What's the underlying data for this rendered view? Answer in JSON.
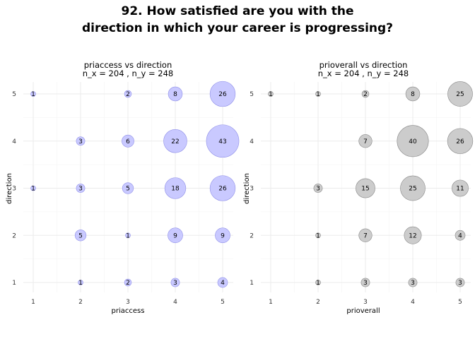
{
  "title_line1": "92. How satisfied are you with the",
  "title_line2": "direction in which your career is progressing?",
  "colors": {
    "left_fill": "#c9c9ff",
    "left_stroke": "#8f8fe8",
    "right_fill": "#cccccc",
    "right_stroke": "#888888",
    "grid": "#ebebeb"
  },
  "chart_data": [
    {
      "type": "scatter",
      "title": "priaccess vs direction",
      "subtitle": "n_x = 204 , n_y = 248",
      "xlabel": "priaccess",
      "ylabel": "direction",
      "xlim": [
        1,
        5
      ],
      "ylim": [
        1,
        5
      ],
      "x_ticks": [
        "1",
        "2",
        "3",
        "4",
        "5"
      ],
      "y_ticks": [
        "1",
        "2",
        "3",
        "4",
        "5"
      ],
      "points": [
        {
          "x": 1,
          "y": 5,
          "count": 1
        },
        {
          "x": 3,
          "y": 5,
          "count": 2
        },
        {
          "x": 4,
          "y": 5,
          "count": 8
        },
        {
          "x": 5,
          "y": 5,
          "count": 26
        },
        {
          "x": 2,
          "y": 4,
          "count": 3
        },
        {
          "x": 3,
          "y": 4,
          "count": 6
        },
        {
          "x": 4,
          "y": 4,
          "count": 22
        },
        {
          "x": 5,
          "y": 4,
          "count": 43
        },
        {
          "x": 1,
          "y": 3,
          "count": 1
        },
        {
          "x": 2,
          "y": 3,
          "count": 3
        },
        {
          "x": 3,
          "y": 3,
          "count": 5
        },
        {
          "x": 4,
          "y": 3,
          "count": 18
        },
        {
          "x": 5,
          "y": 3,
          "count": 26
        },
        {
          "x": 2,
          "y": 2,
          "count": 5
        },
        {
          "x": 3,
          "y": 2,
          "count": 1
        },
        {
          "x": 4,
          "y": 2,
          "count": 9
        },
        {
          "x": 5,
          "y": 2,
          "count": 9
        },
        {
          "x": 2,
          "y": 1,
          "count": 1
        },
        {
          "x": 3,
          "y": 1,
          "count": 2
        },
        {
          "x": 4,
          "y": 1,
          "count": 3
        },
        {
          "x": 5,
          "y": 1,
          "count": 4
        }
      ]
    },
    {
      "type": "scatter",
      "title": "prioverall vs direction",
      "subtitle": "n_x = 204 , n_y = 248",
      "xlabel": "prioverall",
      "ylabel": "direction",
      "xlim": [
        1,
        5
      ],
      "ylim": [
        1,
        5
      ],
      "x_ticks": [
        "1",
        "2",
        "3",
        "4",
        "5"
      ],
      "y_ticks": [
        "1",
        "2",
        "3",
        "4",
        "5"
      ],
      "points": [
        {
          "x": 1,
          "y": 5,
          "count": 1
        },
        {
          "x": 2,
          "y": 5,
          "count": 1
        },
        {
          "x": 3,
          "y": 5,
          "count": 2
        },
        {
          "x": 4,
          "y": 5,
          "count": 8
        },
        {
          "x": 5,
          "y": 5,
          "count": 25
        },
        {
          "x": 3,
          "y": 4,
          "count": 7
        },
        {
          "x": 4,
          "y": 4,
          "count": 40
        },
        {
          "x": 5,
          "y": 4,
          "count": 26
        },
        {
          "x": 2,
          "y": 3,
          "count": 3
        },
        {
          "x": 3,
          "y": 3,
          "count": 15
        },
        {
          "x": 4,
          "y": 3,
          "count": 25
        },
        {
          "x": 5,
          "y": 3,
          "count": 11
        },
        {
          "x": 2,
          "y": 2,
          "count": 1
        },
        {
          "x": 3,
          "y": 2,
          "count": 7
        },
        {
          "x": 4,
          "y": 2,
          "count": 12
        },
        {
          "x": 5,
          "y": 2,
          "count": 4
        },
        {
          "x": 2,
          "y": 1,
          "count": 1
        },
        {
          "x": 3,
          "y": 1,
          "count": 3
        },
        {
          "x": 4,
          "y": 1,
          "count": 3
        },
        {
          "x": 5,
          "y": 1,
          "count": 3
        }
      ]
    }
  ]
}
